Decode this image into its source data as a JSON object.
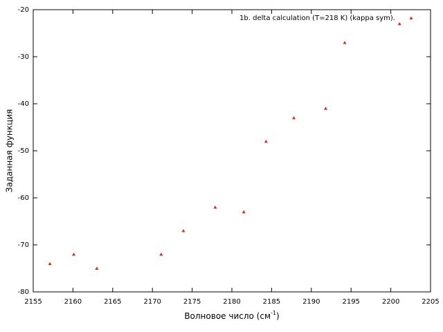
{
  "chart_data": {
    "type": "scatter",
    "x_label": [
      "Волновое число (см",
      "-1",
      ")"
    ],
    "y_label": "Заданная функция",
    "series": [
      {
        "name": "1b. delta calculation (T=218 K) (kappa sym).",
        "color": "#d62b1e",
        "x": [
          2157.1,
          2160.1,
          2163.0,
          2171.1,
          2173.9,
          2177.9,
          2181.5,
          2184.3,
          2187.8,
          2191.8,
          2194.2,
          2201.1
        ],
        "values": [
          -74,
          -72,
          -75,
          -72,
          -67,
          -62,
          -63,
          -48,
          -43,
          -41,
          -27,
          -23
        ]
      }
    ],
    "xlim": [
      2155,
      2205
    ],
    "xticks": [
      2155,
      2160,
      2165,
      2170,
      2175,
      2180,
      2185,
      2190,
      2195,
      2200,
      2205
    ],
    "ylim": [
      -80,
      -20
    ],
    "yticks": [
      -80,
      -70,
      -60,
      -50,
      -40,
      -30,
      -20
    ],
    "legend": "top right"
  }
}
